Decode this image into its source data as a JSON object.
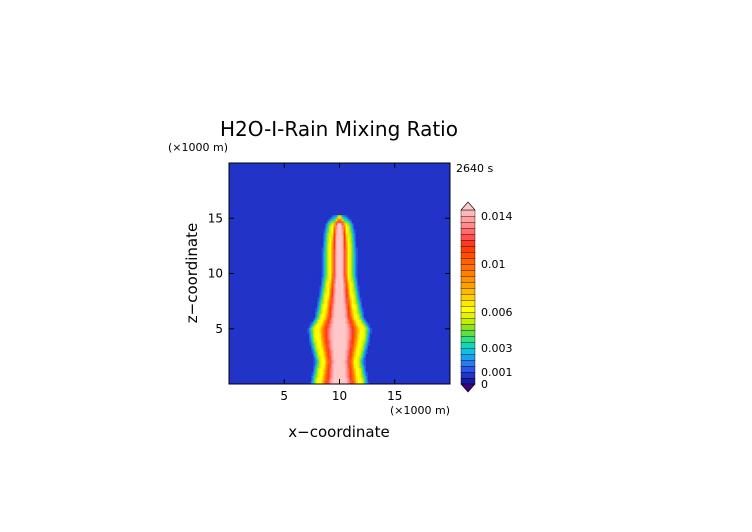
{
  "chart_data": {
    "type": "heatmap",
    "title": "H2O-I-Rain Mixing Ratio",
    "time_label": "2640 s",
    "xlabel": "x−coordinate",
    "ylabel": "z−coordinate",
    "x_unit_label": "(×1000 m)",
    "y_unit_label": "(×1000 m)",
    "xlim": [
      0,
      20
    ],
    "ylim": [
      0,
      20
    ],
    "x_ticks": [
      5,
      10,
      15
    ],
    "y_ticks": [
      5,
      10,
      15
    ],
    "plume": {
      "center_x": 10,
      "profile": [
        {
          "z": 0,
          "half_width": 2.0
        },
        {
          "z": 2,
          "half_width": 1.6
        },
        {
          "z": 4,
          "half_width": 2.1
        },
        {
          "z": 5,
          "half_width": 2.2
        },
        {
          "z": 6,
          "half_width": 1.6
        },
        {
          "z": 8,
          "half_width": 1.2
        },
        {
          "z": 10,
          "half_width": 0.9
        },
        {
          "z": 12,
          "half_width": 0.9
        },
        {
          "z": 13.5,
          "half_width": 0.8
        },
        {
          "z": 14.5,
          "half_width": 0.6
        },
        {
          "z": 15.2,
          "half_width": 0.3
        }
      ],
      "max_value": 0.0155
    },
    "colorbar": {
      "levels": [
        0,
        0.0005,
        0.001,
        0.0015,
        0.002,
        0.0025,
        0.003,
        0.0035,
        0.004,
        0.0045,
        0.005,
        0.0055,
        0.006,
        0.0065,
        0.007,
        0.0075,
        0.008,
        0.0085,
        0.009,
        0.0095,
        0.01,
        0.0105,
        0.011,
        0.0115,
        0.012,
        0.0125,
        0.013,
        0.0135,
        0.014,
        0.0145
      ],
      "colors": [
        "#1a1aa0",
        "#2233c8",
        "#2a55e6",
        "#2a7af0",
        "#1aa0f0",
        "#10c0e0",
        "#10d8b0",
        "#30e080",
        "#60e040",
        "#90e020",
        "#c0f000",
        "#e8f000",
        "#ffff00",
        "#ffe800",
        "#ffd000",
        "#ffb800",
        "#ffa000",
        "#ff9000",
        "#ff8000",
        "#ff7000",
        "#ff6000",
        "#ff5000",
        "#ff4000",
        "#ff3a20",
        "#ff5050",
        "#ff6a6a",
        "#ff8a8a",
        "#ffa0a0",
        "#ffb8b8"
      ],
      "under_color": "#400080",
      "over_color": "#ffc8c8",
      "tick_values": [
        0,
        0.001,
        0.003,
        0.006,
        0.01,
        0.014
      ],
      "tick_labels": [
        "0",
        "0.001",
        "0.003",
        "0.006",
        "0.01",
        "0.014"
      ]
    }
  }
}
